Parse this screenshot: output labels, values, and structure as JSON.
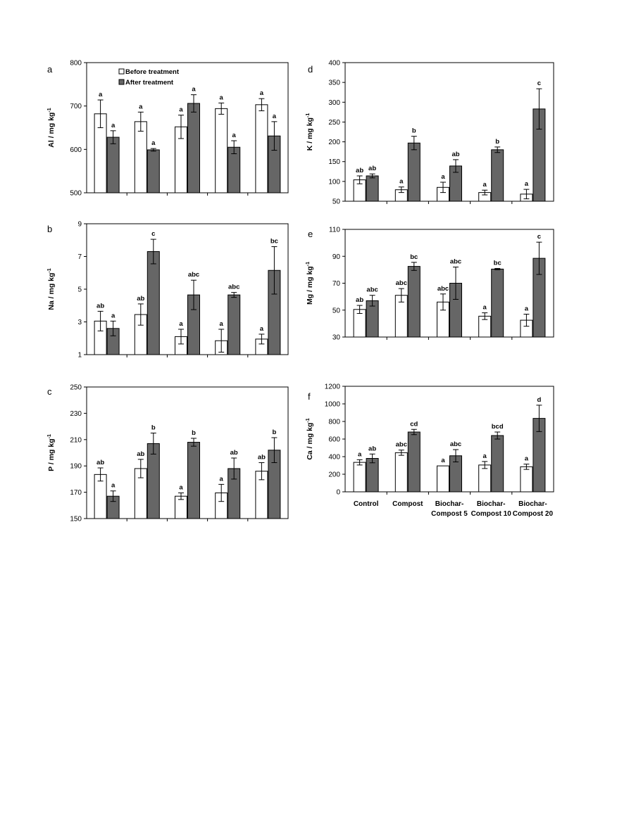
{
  "legend": {
    "before_label": "Before treatment",
    "after_label": "After treatment"
  },
  "colors": {
    "before": "#ffffff",
    "after": "#666666",
    "axis": "#000000"
  },
  "categories": [
    [
      "Control"
    ],
    [
      "Compost"
    ],
    [
      "Biochar-",
      "Compost 5"
    ],
    [
      "Biochar-",
      "Compost 10"
    ],
    [
      "Biochar-",
      "Compost 20"
    ]
  ],
  "chart_data": [
    {
      "type": "bar",
      "panel": "a",
      "ylabel": "Al / mg kg",
      "ylabel_sup": "-1",
      "ylim": [
        500,
        800
      ],
      "yticks": [
        500,
        600,
        700,
        800
      ],
      "series": [
        {
          "name": "Before treatment",
          "values": [
            682,
            664,
            652,
            694,
            703
          ],
          "errors": [
            32,
            22,
            27,
            13,
            14
          ],
          "letters": [
            "a",
            "a",
            "a",
            "a",
            "a"
          ]
        },
        {
          "name": "After treatment",
          "values": [
            628,
            599,
            706,
            605,
            631
          ],
          "errors": [
            15,
            3,
            20,
            15,
            33
          ],
          "letters": [
            "a",
            "a",
            "a",
            "a",
            "a"
          ]
        }
      ]
    },
    {
      "type": "bar",
      "panel": "b",
      "ylabel": "Na / mg kg",
      "ylabel_sup": "-1",
      "ylim": [
        1,
        9
      ],
      "yticks": [
        1,
        3,
        5,
        7,
        9
      ],
      "series": [
        {
          "name": "Before treatment",
          "values": [
            3.05,
            3.45,
            2.1,
            1.85,
            1.95
          ],
          "errors": [
            0.6,
            0.65,
            0.45,
            0.7,
            0.3
          ],
          "letters": [
            "ab",
            "ab",
            "a",
            "a",
            "a"
          ]
        },
        {
          "name": "After treatment",
          "values": [
            2.6,
            7.3,
            4.65,
            4.65,
            6.15
          ],
          "errors": [
            0.45,
            0.75,
            0.9,
            0.15,
            1.45
          ],
          "letters": [
            "a",
            "c",
            "abc",
            "abc",
            "bc"
          ]
        }
      ]
    },
    {
      "type": "bar",
      "panel": "c",
      "ylabel": "P / mg kg",
      "ylabel_sup": "-1",
      "ylim": [
        150,
        250
      ],
      "yticks": [
        150,
        170,
        190,
        210,
        230,
        250
      ],
      "series": [
        {
          "name": "Before treatment",
          "values": [
            183.5,
            188,
            167,
            169.5,
            186
          ],
          "errors": [
            5,
            7,
            2.5,
            6.5,
            6.5
          ],
          "letters": [
            "ab",
            "ab",
            "a",
            "a",
            "ab"
          ]
        },
        {
          "name": "After treatment",
          "values": [
            167,
            207,
            208,
            188,
            202
          ],
          "errors": [
            4,
            8,
            3,
            8,
            9.5
          ],
          "letters": [
            "a",
            "b",
            "b",
            "ab",
            "b"
          ]
        }
      ]
    },
    {
      "type": "bar",
      "panel": "d",
      "ylabel": "K / mg kg",
      "ylabel_sup": "-1",
      "ylim": [
        50,
        400
      ],
      "yticks": [
        50,
        100,
        150,
        200,
        250,
        300,
        350,
        400
      ],
      "series": [
        {
          "name": "Before treatment",
          "values": [
            104,
            79,
            85,
            72,
            68
          ],
          "errors": [
            10,
            7,
            13,
            6,
            12
          ],
          "letters": [
            "ab",
            "a",
            "a",
            "a",
            "a"
          ]
        },
        {
          "name": "After treatment",
          "values": [
            114,
            197,
            139,
            180,
            283
          ],
          "errors": [
            5,
            17,
            16,
            7,
            51
          ],
          "letters": [
            "ab",
            "b",
            "ab",
            "b",
            "c"
          ]
        }
      ]
    },
    {
      "type": "bar",
      "panel": "e",
      "ylabel": "Mg / mg kg",
      "ylabel_sup": "-1",
      "ylim": [
        30,
        110
      ],
      "yticks": [
        30,
        50,
        70,
        90,
        110
      ],
      "series": [
        {
          "name": "Before treatment",
          "values": [
            50.5,
            61,
            56,
            45.5,
            42.5
          ],
          "errors": [
            3,
            5,
            6,
            2.5,
            4.5
          ],
          "letters": [
            "ab",
            "abc",
            "abc",
            "a",
            "a"
          ]
        },
        {
          "name": "After treatment",
          "values": [
            57,
            82.5,
            70,
            80.5,
            88.5
          ],
          "errors": [
            4,
            3,
            12,
            0.5,
            12
          ],
          "letters": [
            "abc",
            "bc",
            "abc",
            "bc",
            "c"
          ]
        }
      ]
    },
    {
      "type": "bar",
      "panel": "f",
      "ylabel": "Ca / mg kg",
      "ylabel_sup": "-1",
      "ylim": [
        0,
        1200
      ],
      "yticks": [
        0,
        200,
        400,
        600,
        800,
        1000,
        1200
      ],
      "series": [
        {
          "name": "Before treatment",
          "values": [
            335,
            445,
            295,
            305,
            285
          ],
          "errors": [
            30,
            30,
            0,
            40,
            30
          ],
          "letters": [
            "a",
            "abc",
            "a",
            "a",
            "a"
          ]
        },
        {
          "name": "After treatment",
          "values": [
            380,
            680,
            410,
            640,
            835
          ],
          "errors": [
            50,
            30,
            70,
            40,
            150
          ],
          "letters": [
            "ab",
            "cd",
            "abc",
            "bcd",
            "d"
          ]
        }
      ]
    }
  ]
}
